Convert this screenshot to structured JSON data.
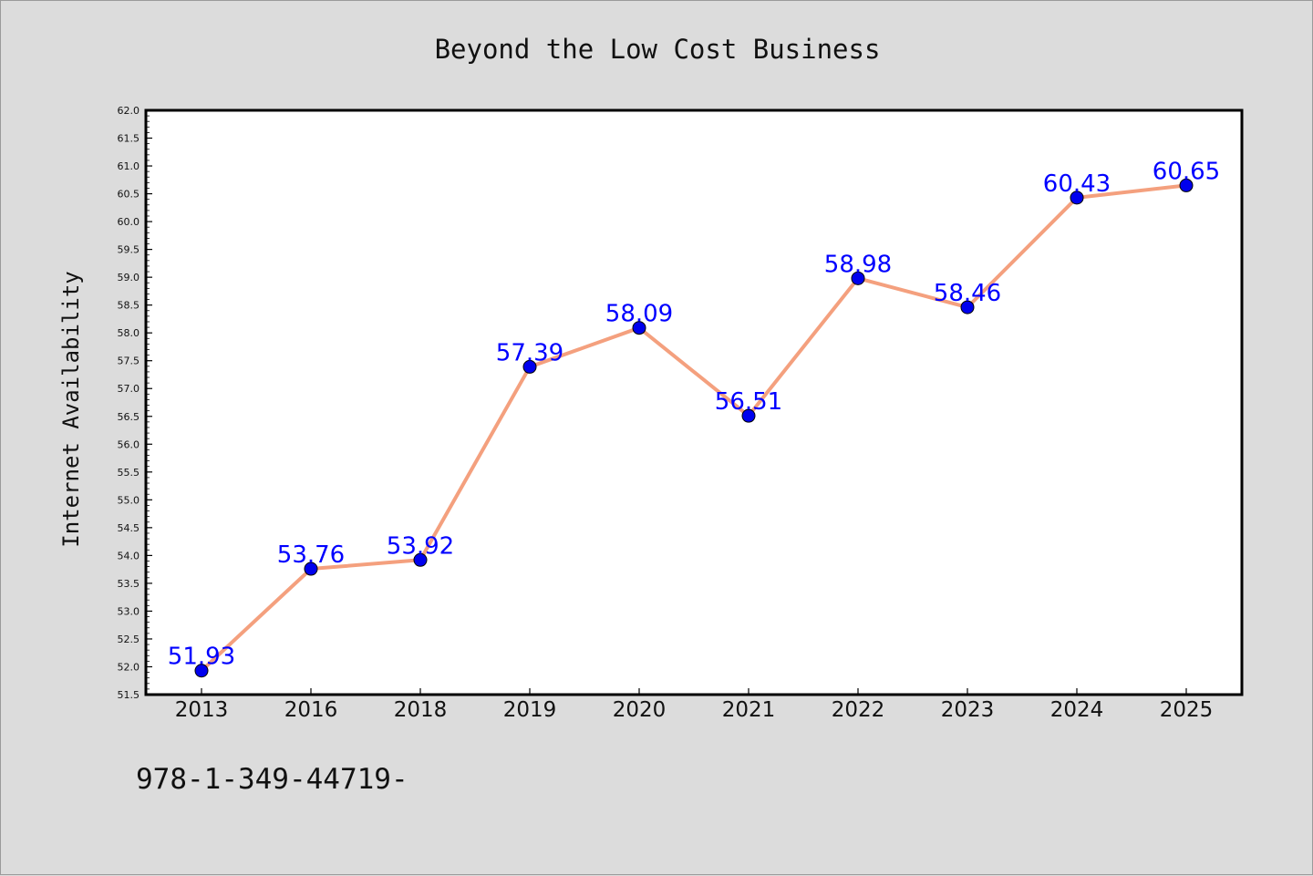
{
  "chart_data": {
    "type": "line",
    "title": "Beyond the Low Cost Business",
    "xlabel": "",
    "ylabel": "Internet Availability",
    "categories": [
      "2013",
      "2016",
      "2018",
      "2019",
      "2020",
      "2021",
      "2022",
      "2023",
      "2024",
      "2025"
    ],
    "series": [
      {
        "values": [
          51.93,
          53.76,
          53.92,
          57.39,
          58.09,
          56.51,
          58.98,
          58.46,
          60.43,
          60.65
        ],
        "labels": [
          "51.93",
          "53.76",
          "53.92",
          "57.39",
          "58.09",
          "56.51",
          "58.98",
          "58.46",
          "60.43",
          "60.65"
        ],
        "line_color": "#f4a07e",
        "marker_color": "#0000ee"
      }
    ],
    "ylim": [
      51.5,
      62.0
    ],
    "yticks": [
      "51.5",
      "52.0",
      "52.5",
      "53.0",
      "53.5",
      "54.0",
      "54.5",
      "55.0",
      "55.5",
      "56.0",
      "56.5",
      "57.0",
      "57.5",
      "58.0",
      "58.5",
      "59.0",
      "59.5",
      "60.0",
      "60.5",
      "61.0",
      "61.5",
      "62.0"
    ],
    "grid": false,
    "legend": "none"
  },
  "footer": {
    "text": "978-1-349-44719-"
  },
  "colors": {
    "background": "#dcdcdc",
    "plot_background": "#ffffff",
    "label_color": "#0000ff"
  }
}
